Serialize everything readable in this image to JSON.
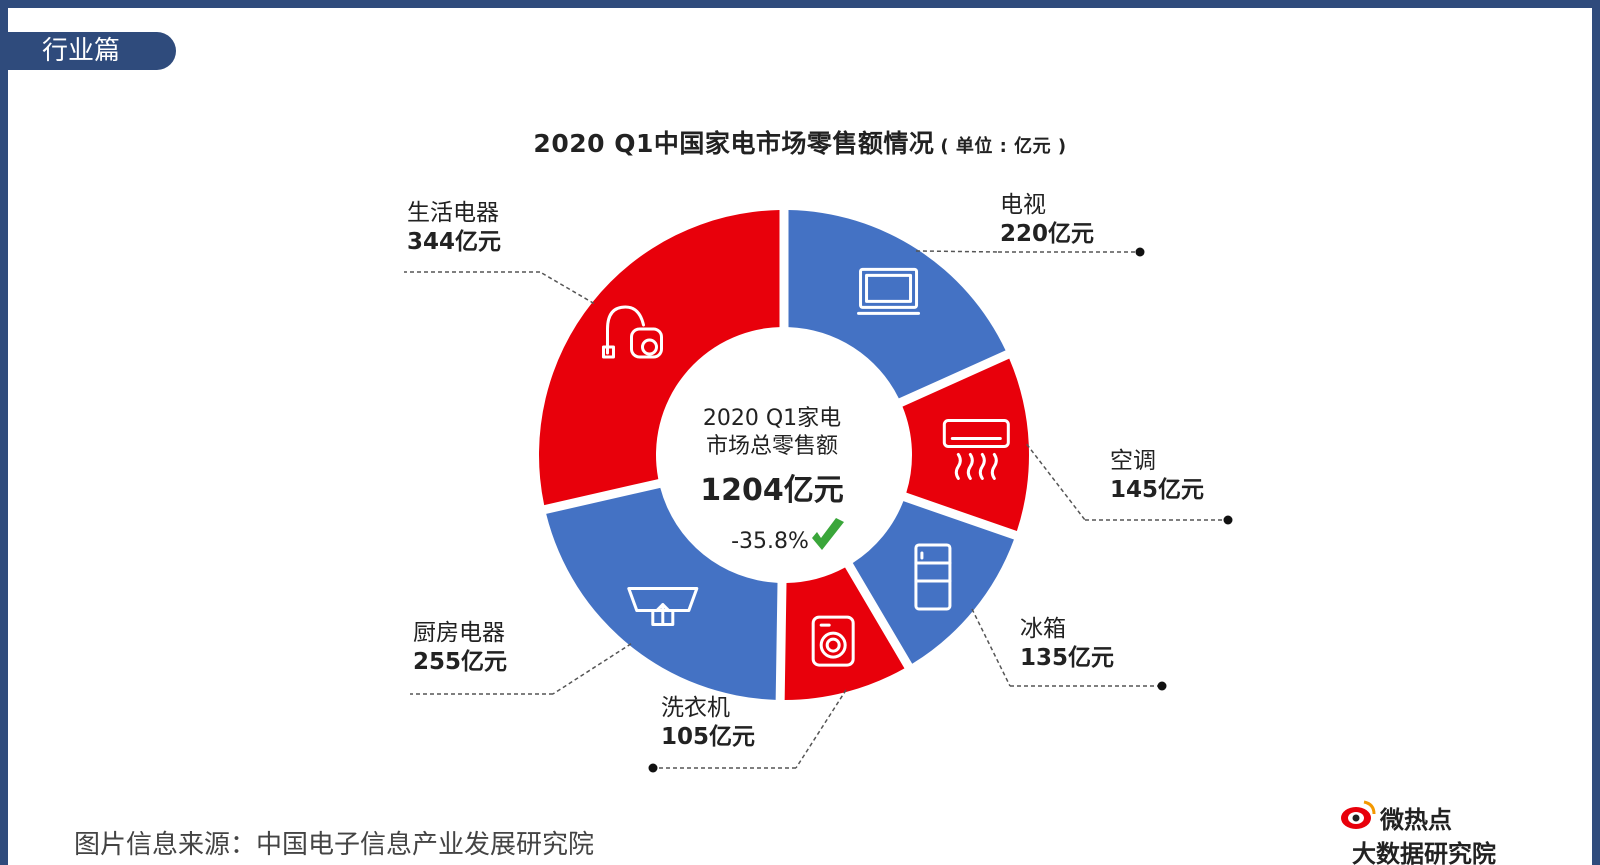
{
  "header": {
    "section_label": "行业篇"
  },
  "chart_data": {
    "type": "pie",
    "title": "2020 Q1中国家电市场零售额情况",
    "unit_note": "( 单位 : 亿元 )",
    "center": {
      "line1": "2020 Q1家电",
      "line2": "市场总零售额",
      "total": "1204亿元",
      "change": "-35.8%"
    },
    "categories": [
      "电视",
      "空调",
      "冰箱",
      "洗衣机",
      "厨房电器",
      "生活电器"
    ],
    "values": [
      220,
      145,
      135,
      105,
      255,
      344
    ],
    "value_labels": [
      "220亿元",
      "145亿元",
      "135亿元",
      "105亿元",
      "255亿元",
      "344亿元"
    ],
    "colors": [
      "#4472c4",
      "#e8000b",
      "#4472c4",
      "#e8000b",
      "#4472c4",
      "#e8000b"
    ],
    "icons": [
      "tv-icon",
      "air-conditioner-icon",
      "refrigerator-icon",
      "washing-machine-icon",
      "range-hood-icon",
      "vacuum-cleaner-icon"
    ]
  },
  "footer": {
    "source_text": "图片信息来源：中国电子信息产业发展研究院",
    "logo_brand": "微热点",
    "logo_sub": "大数据研究院"
  }
}
